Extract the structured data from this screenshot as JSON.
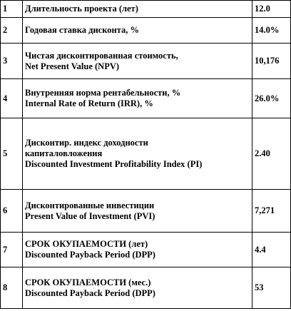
{
  "rows": [
    {
      "index": "1",
      "label": [
        "Длительность  проекта  (лет)"
      ],
      "value": "12.0"
    },
    {
      "index": "2",
      "label": [
        "Годовая ставка  дисконта,  %"
      ],
      "value": "14.0%"
    },
    {
      "index": "3",
      "label": [
        "Чистая дисконтированная  стоимость,",
        "Net Present  Value (NPV)"
      ],
      "value": "10,176"
    },
    {
      "index": "4",
      "label": [
        "Внутренняя норма рентабельности,  %",
        "Internal Rate of Return  (IRR), %"
      ],
      "value": "26.0%"
    },
    {
      "index": "5",
      "label": [
        "Дисконтир. индекс доходности",
        "капиталовложения",
        "Discounted  Investment  Profitability Index (PI)"
      ],
      "value": "2.40"
    },
    {
      "index": "6",
      "label": [
        "Дисконтированные  инвестиции",
        "Present  Value of Investment  (PVI)"
      ],
      "value": "7,271"
    },
    {
      "index": "7",
      "label": [
        "СРОК ОКУПАЕМОСТИ  (лет)",
        "Discounted  Payback Period  (DPP)"
      ],
      "value": "4.4"
    },
    {
      "index": "8",
      "label": [
        "СРОК ОКУПАЕМОСТИ  (мес.)",
        "Discounted  Payback Period  (DPP)"
      ],
      "value": "53"
    }
  ]
}
